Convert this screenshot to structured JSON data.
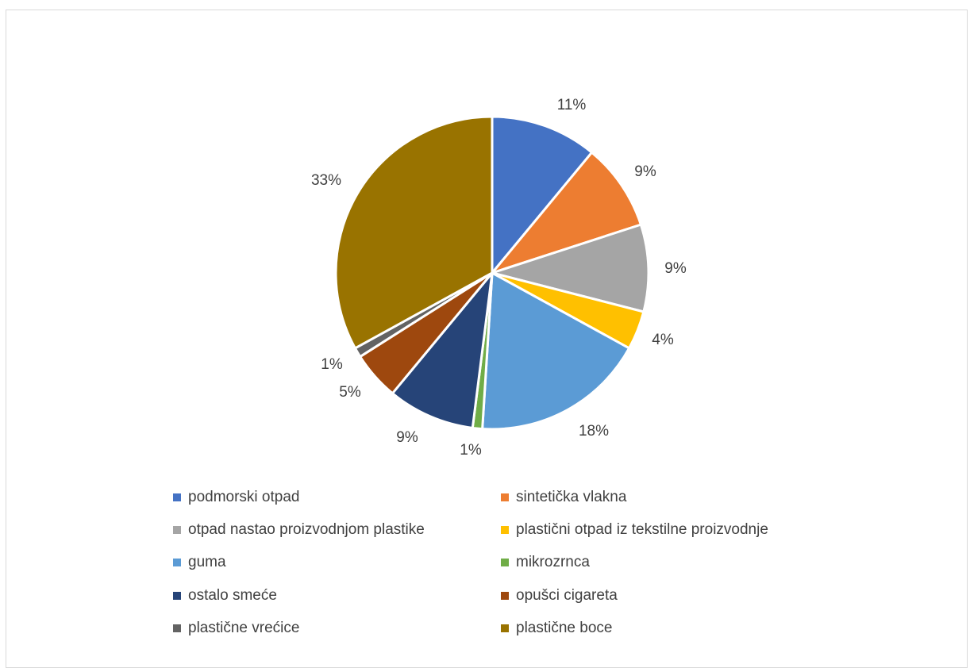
{
  "chart_data": {
    "type": "pie",
    "slices": [
      {
        "label": "podmorski otpad",
        "value": 11,
        "display": "11%",
        "color": "#4472C4"
      },
      {
        "label": "sintetička vlakna",
        "value": 9,
        "display": "9%",
        "color": "#ED7D31"
      },
      {
        "label": "otpad nastao proizvodnjom plastike",
        "value": 9,
        "display": "9%",
        "color": "#A5A5A5"
      },
      {
        "label": "plastični otpad iz tekstilne proizvodnje",
        "value": 4,
        "display": "4%",
        "color": "#FFC000"
      },
      {
        "label": "guma",
        "value": 18,
        "display": "18%",
        "color": "#5B9BD5"
      },
      {
        "label": "mikrozrnca",
        "value": 1,
        "display": "1%",
        "color": "#70AD47"
      },
      {
        "label": "ostalo smeće",
        "value": 9,
        "display": "9%",
        "color": "#264478"
      },
      {
        "label": "opušci cigareta",
        "value": 5,
        "display": "5%",
        "color": "#9E480E"
      },
      {
        "label": "plastične vrećice",
        "value": 1,
        "display": "1%",
        "color": "#636363"
      },
      {
        "label": "plastične boce",
        "value": 33,
        "display": "33%",
        "color": "#997300"
      }
    ],
    "legend_position": "bottom",
    "legend_columns": 2
  }
}
